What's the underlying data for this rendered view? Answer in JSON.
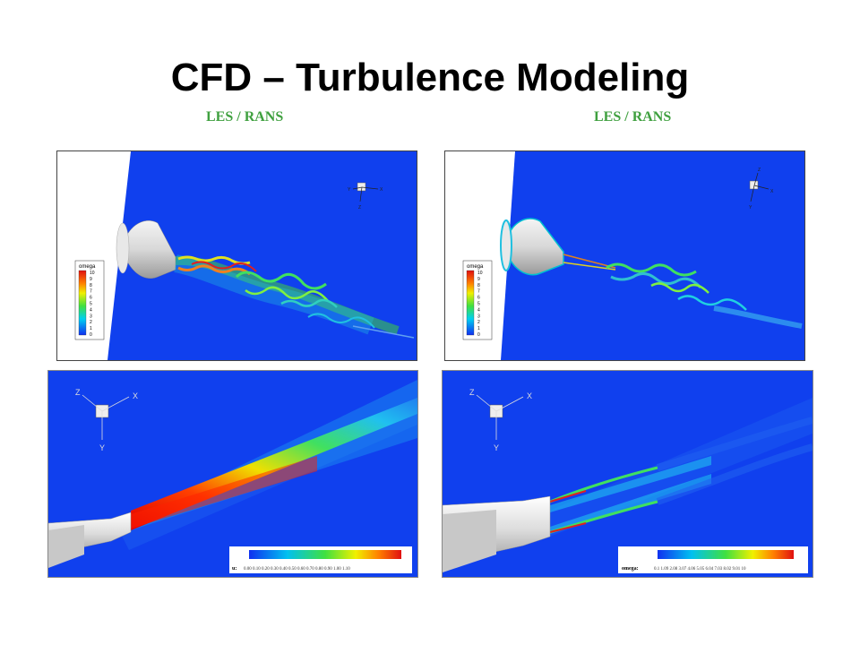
{
  "slide": {
    "title": "CFD – Turbulence Modeling",
    "left_label": "LES / RANS",
    "right_label": "LES / RANS"
  },
  "panels": {
    "top_left": {
      "legend_title": "omega",
      "legend_values": [
        "10",
        "9",
        "8",
        "7",
        "6",
        "5",
        "4",
        "3",
        "2",
        "1",
        "0"
      ],
      "axes": {
        "x": "X",
        "y": "Y",
        "z": "Z"
      }
    },
    "top_right": {
      "legend_title": "omega",
      "legend_values": [
        "10",
        "9",
        "8",
        "7",
        "6",
        "5",
        "4",
        "3",
        "2",
        "1",
        "0"
      ],
      "axes": {
        "x": "X",
        "y": "Y",
        "z": "Z"
      }
    },
    "bottom_left": {
      "axes": {
        "x": "X",
        "y": "Y",
        "z": "Z"
      },
      "colorbar_label": "u:",
      "colorbar_ticks": "0.00 0.10 0.20 0.30 0.40 0.50 0.60 0.70 0.80 0.90 1.00 1.10"
    },
    "bottom_right": {
      "axes": {
        "x": "X",
        "y": "Y",
        "z": "Z"
      },
      "colorbar_label": "omega:",
      "colorbar_ticks": "0.1 1.09 2.08 3.07 4.06 5.05 6.04 7.03 8.02 9.01 10"
    }
  },
  "colors": {
    "field_background": "#1040ee",
    "label_green": "#3fa03f"
  }
}
